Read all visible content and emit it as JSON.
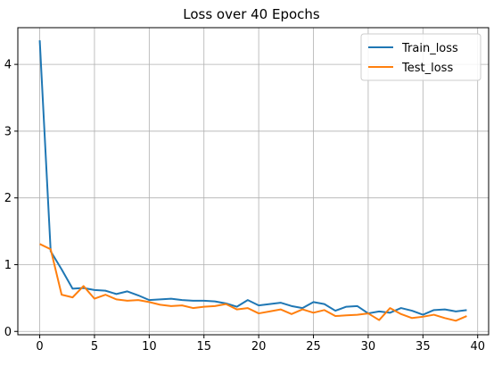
{
  "chart_data": {
    "type": "line",
    "title": "Loss over 40 Epochs",
    "xlabel": "",
    "ylabel": "",
    "xlim": [
      -2,
      41
    ],
    "ylim": [
      -0.05,
      4.55
    ],
    "xticks": [
      0,
      5,
      10,
      15,
      20,
      25,
      30,
      35,
      40
    ],
    "yticks": [
      0,
      1,
      2,
      3,
      4
    ],
    "grid": true,
    "legend_position": "top-right",
    "x": [
      0,
      1,
      2,
      3,
      4,
      5,
      6,
      7,
      8,
      9,
      10,
      11,
      12,
      13,
      14,
      15,
      16,
      17,
      18,
      19,
      20,
      21,
      22,
      23,
      24,
      25,
      26,
      27,
      28,
      29,
      30,
      31,
      32,
      33,
      34,
      35,
      36,
      37,
      38,
      39
    ],
    "series": [
      {
        "name": "Train_loss",
        "color": "#1f77b4",
        "values": [
          4.36,
          1.2,
          0.93,
          0.64,
          0.65,
          0.62,
          0.61,
          0.56,
          0.6,
          0.54,
          0.47,
          0.48,
          0.49,
          0.47,
          0.46,
          0.46,
          0.45,
          0.42,
          0.37,
          0.47,
          0.39,
          0.41,
          0.43,
          0.38,
          0.35,
          0.44,
          0.41,
          0.31,
          0.37,
          0.38,
          0.27,
          0.3,
          0.28,
          0.35,
          0.31,
          0.25,
          0.32,
          0.33,
          0.3,
          0.32
        ]
      },
      {
        "name": "Test_loss",
        "color": "#ff7f0e",
        "values": [
          1.31,
          1.23,
          0.55,
          0.51,
          0.68,
          0.49,
          0.55,
          0.48,
          0.46,
          0.47,
          0.44,
          0.4,
          0.38,
          0.39,
          0.35,
          0.37,
          0.38,
          0.41,
          0.33,
          0.35,
          0.27,
          0.3,
          0.33,
          0.26,
          0.33,
          0.28,
          0.32,
          0.23,
          0.24,
          0.25,
          0.27,
          0.17,
          0.35,
          0.26,
          0.2,
          0.22,
          0.25,
          0.2,
          0.16,
          0.23
        ]
      }
    ]
  }
}
